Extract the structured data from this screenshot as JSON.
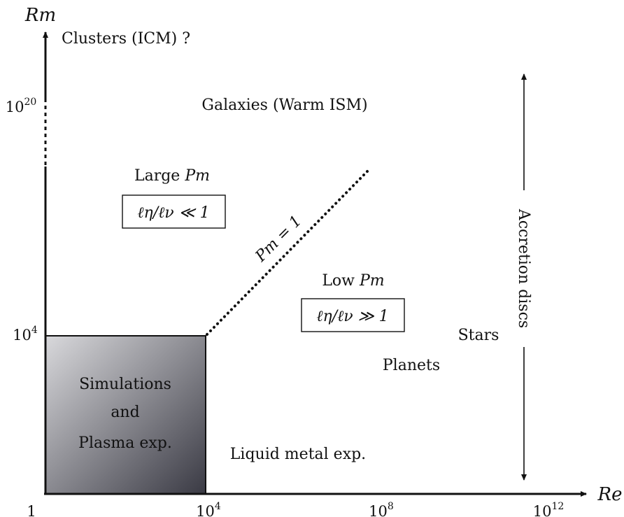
{
  "axes": {
    "x_title": "Re",
    "y_title": "Rm",
    "x_ticks": [
      {
        "base": "1",
        "exp": ""
      },
      {
        "base": "10",
        "exp": "4"
      },
      {
        "base": "10",
        "exp": "8"
      },
      {
        "base": "10",
        "exp": "12"
      }
    ],
    "y_ticks": [
      {
        "base": "10",
        "exp": "4"
      },
      {
        "base": "10",
        "exp": "20"
      }
    ]
  },
  "regions": {
    "clusters": "Clusters (ICM) ?",
    "galaxies": "Galaxies (Warm ISM)",
    "large_pm": {
      "prefix": "Large ",
      "symbol": "Pm",
      "box": "ℓη/ℓν ≪ 1"
    },
    "low_pm": {
      "prefix": "Low ",
      "symbol": "Pm",
      "box": "ℓη/ℓν ≫ 1"
    },
    "pm_line": "Pm = 1",
    "stars": "Stars",
    "planets": "Planets",
    "liquid_metal": "Liquid metal exp.",
    "accretion": "Accretion discs",
    "sim_box": [
      "Simulations",
      "and",
      "Plasma exp."
    ]
  },
  "colors": {
    "ink": "#111111",
    "sim_gradient_light": "#d9d9dc",
    "sim_gradient_dark": "#3a3a44"
  }
}
